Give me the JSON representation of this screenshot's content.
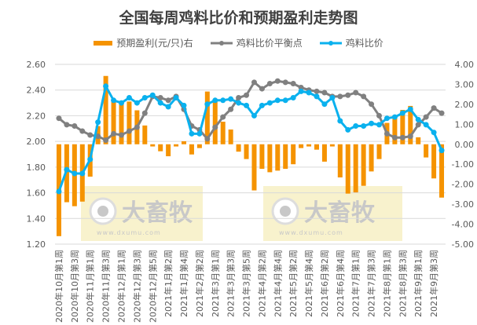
{
  "chart_data": {
    "type": "bar+line",
    "title": "全国每周鸡料比价和预期盈利走势图",
    "tick_labels": [
      "2020年10月第1周",
      "2020年10月第3周",
      "2020年11月第1周",
      "2020年11月第3周",
      "2020年12月第1周",
      "2020年12月第3周",
      "2020年12月第5周",
      "2021年1月第2周",
      "2021年1月第4周",
      "2021年2月第2周",
      "2021年3月第1周",
      "2021年3月第3周",
      "2021年3月第5周",
      "2021年4月第2周",
      "2021年4月第4周",
      "2021年5月第2周",
      "2021年5月第4周",
      "2021年6月第2周",
      "2021年6月第4周",
      "2021年7月第1周",
      "2021年7月第3周",
      "2021年8月第1周",
      "2021年8月第3周",
      "2021年9月第1周",
      "2021年9月第3周"
    ],
    "left_axis": {
      "ylim": [
        1.2,
        2.6
      ],
      "ticks": [
        "1.20",
        "1.40",
        "1.60",
        "1.80",
        "2.00",
        "2.20",
        "2.40",
        "2.60"
      ]
    },
    "right_axis": {
      "ylim": [
        -5,
        4
      ],
      "ticks": [
        "-5.00",
        "-4.00",
        "-3.00",
        "-2.00",
        "-1.00",
        "0.00",
        "1.00",
        "2.00",
        "3.00",
        "4.00"
      ]
    },
    "grid": true,
    "legend_position": "top",
    "series": [
      {
        "name": "预期盈利(元/只)右",
        "type": "bar",
        "axis": "right",
        "color": "#F59300",
        "values": [
          -4.6,
          -2.9,
          -3.1,
          -2.87,
          -1.62,
          0.91,
          3.42,
          2.14,
          2.05,
          2.14,
          1.7,
          0.94,
          -0.11,
          -0.35,
          -0.6,
          -0.11,
          0.15,
          -0.51,
          -0.19,
          2.64,
          2.25,
          1.13,
          0.74,
          -0.37,
          -0.74,
          -2.31,
          -1.23,
          -1.4,
          -1.32,
          -1.23,
          -1.0,
          -0.19,
          -0.11,
          -0.27,
          -0.87,
          -0.11,
          -1.66,
          -2.47,
          -2.41,
          -2.08,
          -1.36,
          -0.74,
          1.07,
          1.33,
          1.72,
          1.92,
          0.35,
          -0.66,
          -1.71,
          -2.67
        ]
      },
      {
        "name": "鸡料比价平衡点",
        "type": "line",
        "axis": "left",
        "color": "#808080",
        "values": [
          2.18,
          2.13,
          2.12,
          2.08,
          2.05,
          2.04,
          2.01,
          2.06,
          2.05,
          2.08,
          2.11,
          2.22,
          2.35,
          2.34,
          2.32,
          2.35,
          2.25,
          2.12,
          2.09,
          2.02,
          2.11,
          2.19,
          2.25,
          2.34,
          2.36,
          2.46,
          2.41,
          2.45,
          2.47,
          2.46,
          2.45,
          2.42,
          2.4,
          2.39,
          2.38,
          2.35,
          2.35,
          2.36,
          2.38,
          2.35,
          2.29,
          2.2,
          2.06,
          2.03,
          2.03,
          2.04,
          2.13,
          2.19,
          2.26,
          2.22
        ]
      },
      {
        "name": "鸡料比价",
        "type": "line",
        "axis": "left",
        "color": "#0AB1EE",
        "values": [
          1.61,
          1.78,
          1.75,
          1.75,
          1.86,
          2.15,
          2.43,
          2.32,
          2.3,
          2.34,
          2.3,
          2.34,
          2.36,
          2.3,
          2.27,
          2.34,
          2.28,
          2.06,
          2.06,
          2.29,
          2.32,
          2.32,
          2.33,
          2.3,
          2.28,
          2.2,
          2.28,
          2.3,
          2.32,
          2.32,
          2.34,
          2.39,
          2.38,
          2.35,
          2.29,
          2.34,
          2.16,
          2.09,
          2.12,
          2.12,
          2.14,
          2.13,
          2.18,
          2.19,
          2.22,
          2.25,
          2.17,
          2.13,
          2.07,
          1.93
        ]
      }
    ]
  },
  "watermark": {
    "logo_text": "大畜牧",
    "url": "www.dxumu.com"
  }
}
